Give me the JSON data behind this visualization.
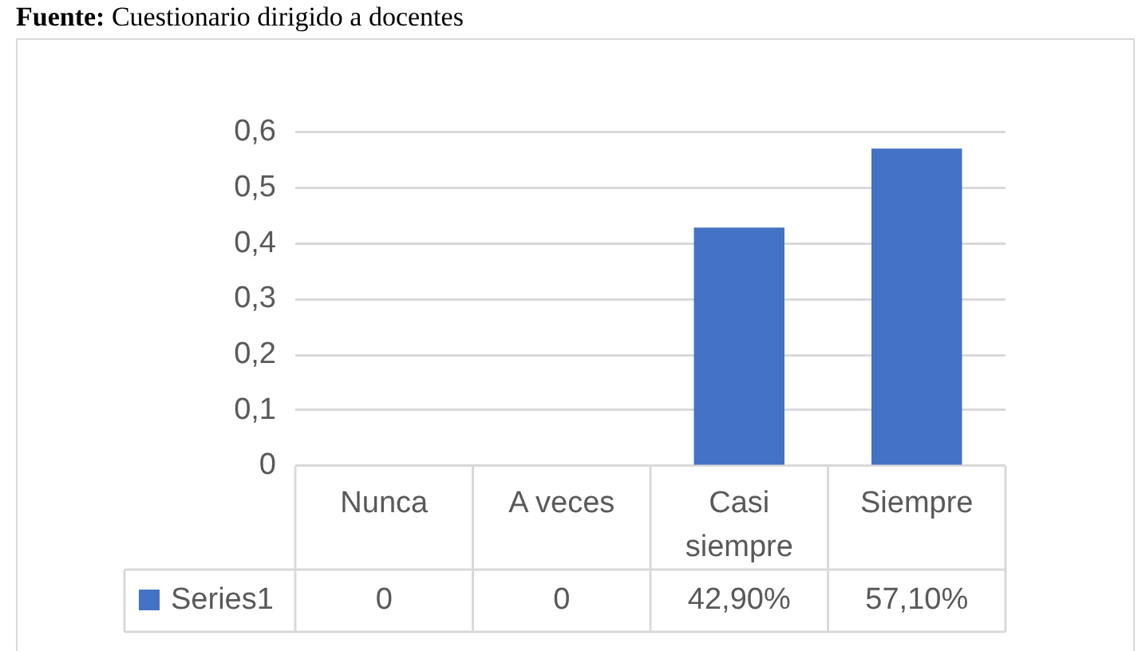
{
  "chart_data": {
    "type": "bar",
    "annotations": [
      "Fuente: Cuestionario dirigido a docentes"
    ],
    "categories": [
      "Nunca",
      "A veces",
      "Casi siempre",
      "Siempre"
    ],
    "series": [
      {
        "name": "Series1",
        "color": "#4472c4",
        "values": [
          0,
          0,
          0.429,
          0.571
        ],
        "value_labels": [
          "0",
          "0",
          "42,90%",
          "57,10%"
        ]
      }
    ],
    "ylim": [
      0,
      0.6
    ],
    "yticks": [
      0,
      {
        "value": 0.1,
        "label": "0,1"
      },
      {
        "value": 0.2,
        "label": "0,2"
      },
      {
        "value": 0.3,
        "label": "0,3"
      },
      {
        "value": 0.4,
        "label": "0,4"
      },
      {
        "value": 0.5,
        "label": "0,5"
      },
      {
        "value": 0.6,
        "label": "0,6"
      }
    ],
    "grid": "y",
    "legend": "bottom"
  }
}
